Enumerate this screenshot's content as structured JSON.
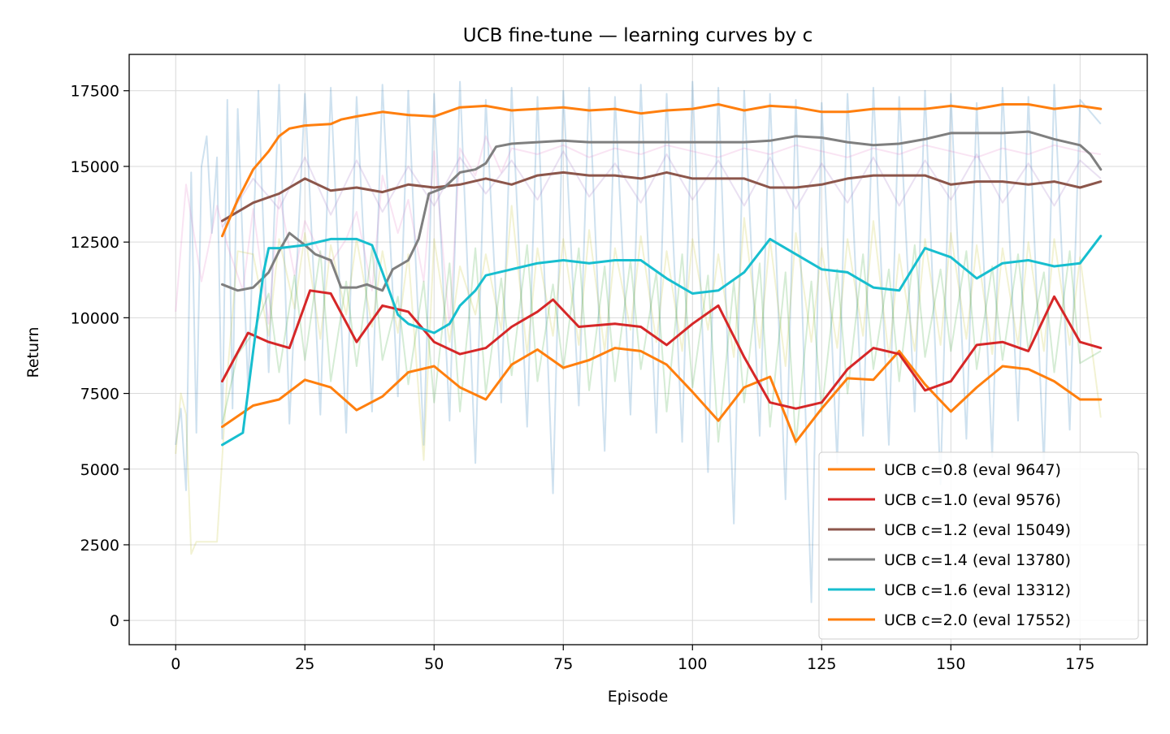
{
  "chart_data": {
    "type": "line",
    "title": "UCB fine-tune — learning curves by c",
    "xlabel": "Episode",
    "ylabel": "Return",
    "xlim": [
      -9,
      188
    ],
    "ylim": [
      -800,
      18700
    ],
    "xticks": [
      0,
      25,
      50,
      75,
      100,
      125,
      150,
      175
    ],
    "xtick_labels": [
      "0",
      "25",
      "50",
      "75",
      "100",
      "125",
      "150",
      "175"
    ],
    "yticks": [
      0,
      2500,
      5000,
      7500,
      10000,
      12500,
      15000,
      17500
    ],
    "ytick_labels": [
      "0",
      "2500",
      "5000",
      "7500",
      "10000",
      "12500",
      "15000",
      "17500"
    ],
    "grid": true,
    "legend_position": "lower-right",
    "series": [
      {
        "name": "UCB c=0.8 (eval 9647)",
        "color": "#ff7f0e",
        "x": [
          9,
          15,
          20,
          25,
          30,
          35,
          40,
          45,
          50,
          55,
          60,
          65,
          70,
          75,
          80,
          85,
          90,
          95,
          100,
          105,
          110,
          115,
          120,
          125,
          130,
          135,
          140,
          145,
          150,
          155,
          160,
          165,
          170,
          175,
          179
        ],
        "y": [
          6400,
          7100,
          7300,
          7950,
          7700,
          6950,
          7400,
          8200,
          8400,
          7700,
          7300,
          8450,
          8950,
          8350,
          8600,
          9000,
          8900,
          8450,
          7550,
          6600,
          7700,
          8050,
          5900,
          7000,
          8000,
          7950,
          8900,
          7800,
          6900,
          7700,
          8400,
          8300,
          7900,
          7300,
          7300
        ]
      },
      {
        "name": "UCB c=1.0 (eval 9576)",
        "color": "#d62728",
        "x": [
          9,
          14,
          18,
          22,
          26,
          30,
          35,
          40,
          45,
          50,
          55,
          60,
          65,
          70,
          73,
          78,
          85,
          90,
          95,
          100,
          105,
          110,
          115,
          120,
          125,
          130,
          135,
          140,
          145,
          150,
          155,
          160,
          165,
          170,
          175,
          179
        ],
        "y": [
          7900,
          9500,
          9200,
          9000,
          10900,
          10800,
          9200,
          10400,
          10200,
          9200,
          8800,
          9000,
          9700,
          10200,
          10600,
          9700,
          9800,
          9700,
          9100,
          9800,
          10400,
          8700,
          7200,
          7000,
          7200,
          8300,
          9000,
          8800,
          7600,
          7900,
          9100,
          9200,
          8900,
          10700,
          9200,
          9000
        ]
      },
      {
        "name": "UCB c=1.2 (eval 15049)",
        "color": "#8c564b",
        "x": [
          9,
          15,
          20,
          25,
          30,
          35,
          40,
          45,
          50,
          55,
          60,
          65,
          70,
          75,
          80,
          85,
          90,
          95,
          100,
          105,
          110,
          115,
          120,
          125,
          130,
          135,
          140,
          145,
          150,
          155,
          160,
          165,
          170,
          175,
          179
        ],
        "y": [
          13200,
          13800,
          14100,
          14600,
          14200,
          14300,
          14150,
          14400,
          14300,
          14400,
          14600,
          14400,
          14700,
          14800,
          14700,
          14700,
          14600,
          14800,
          14600,
          14600,
          14600,
          14300,
          14300,
          14400,
          14600,
          14700,
          14700,
          14700,
          14400,
          14500,
          14500,
          14400,
          14500,
          14300,
          14500
        ]
      },
      {
        "name": "UCB c=1.4 (eval 13780)",
        "color": "#7f7f7f",
        "x": [
          9,
          12,
          15,
          18,
          20,
          22,
          25,
          27,
          30,
          32,
          35,
          37,
          40,
          42,
          45,
          47,
          49,
          52,
          55,
          58,
          60,
          62,
          65,
          70,
          75,
          80,
          90,
          100,
          110,
          115,
          120,
          125,
          130,
          135,
          140,
          145,
          150,
          155,
          160,
          165,
          170,
          175,
          177,
          179
        ],
        "y": [
          11100,
          10900,
          11000,
          11500,
          12200,
          12800,
          12400,
          12100,
          11900,
          11000,
          11000,
          11100,
          10900,
          11600,
          11900,
          12600,
          14100,
          14300,
          14800,
          14900,
          15100,
          15650,
          15750,
          15800,
          15850,
          15800,
          15800,
          15800,
          15800,
          15850,
          16000,
          15950,
          15800,
          15700,
          15750,
          15900,
          16100,
          16100,
          16100,
          16150,
          15900,
          15700,
          15400,
          14900
        ]
      },
      {
        "name": "UCB c=1.6 (eval 13312)",
        "color": "#17becf",
        "x": [
          9,
          13,
          15,
          17,
          18,
          20,
          25,
          30,
          35,
          38,
          40,
          43,
          45,
          50,
          53,
          55,
          58,
          60,
          65,
          70,
          75,
          80,
          85,
          90,
          95,
          100,
          105,
          110,
          115,
          120,
          125,
          130,
          135,
          140,
          145,
          150,
          155,
          160,
          165,
          170,
          175,
          179
        ],
        "y": [
          5800,
          6200,
          8900,
          11500,
          12300,
          12300,
          12400,
          12600,
          12600,
          12400,
          11500,
          10100,
          9800,
          9500,
          9800,
          10400,
          10900,
          11400,
          11600,
          11800,
          11900,
          11800,
          11900,
          11900,
          11300,
          10800,
          10900,
          11500,
          12600,
          12100,
          11600,
          11500,
          11000,
          10900,
          12300,
          12000,
          11300,
          11800,
          11900,
          11700,
          11800,
          12700
        ]
      },
      {
        "name": "UCB c=2.0 (eval 17552)",
        "color": "#ff7f0e",
        "x": [
          9,
          12,
          15,
          18,
          20,
          22,
          25,
          30,
          32,
          35,
          40,
          45,
          50,
          55,
          60,
          65,
          70,
          75,
          80,
          85,
          90,
          95,
          100,
          105,
          110,
          115,
          120,
          125,
          130,
          135,
          140,
          145,
          150,
          155,
          160,
          165,
          170,
          175,
          179
        ],
        "y": [
          12700,
          13900,
          14900,
          15500,
          16000,
          16250,
          16350,
          16400,
          16550,
          16650,
          16800,
          16700,
          16650,
          16950,
          17000,
          16850,
          16900,
          16950,
          16850,
          16900,
          16750,
          16850,
          16900,
          17050,
          16850,
          17000,
          16950,
          16800,
          16800,
          16900,
          16900,
          16900,
          17000,
          16900,
          17050,
          17050,
          16900,
          17000,
          16900
        ]
      }
    ],
    "raw_background_series": [
      {
        "color": "#1f77b4",
        "opacity": 0.22,
        "x": [
          0,
          1,
          2,
          3,
          4,
          5,
          6,
          7,
          8,
          9,
          10,
          11,
          12,
          14,
          16,
          18,
          20,
          22,
          25,
          28,
          30,
          33,
          35,
          38,
          40,
          43,
          45,
          48,
          50,
          53,
          55,
          58,
          60,
          63,
          65,
          68,
          70,
          73,
          75,
          78,
          80,
          83,
          85,
          88,
          90,
          93,
          95,
          98,
          100,
          103,
          105,
          108,
          110,
          113,
          115,
          118,
          120,
          123,
          125,
          128,
          130,
          133,
          135,
          138,
          140,
          143,
          145,
          148,
          150,
          153,
          155,
          158,
          160,
          163,
          165,
          168,
          170,
          173,
          175,
          179
        ],
        "y": [
          5800,
          7000,
          4300,
          14800,
          6200,
          15000,
          16000,
          12800,
          15300,
          6000,
          17200,
          7000,
          16900,
          7600,
          17500,
          8200,
          17700,
          6500,
          17400,
          6800,
          17600,
          6200,
          17300,
          6900,
          17700,
          7400,
          17500,
          5800,
          17400,
          6600,
          17800,
          5200,
          17200,
          7200,
          17600,
          6400,
          17300,
          4200,
          17500,
          7100,
          17600,
          5600,
          17300,
          6800,
          17700,
          6200,
          17400,
          5900,
          17800,
          4900,
          17600,
          3200,
          17500,
          6100,
          17400,
          4000,
          17200,
          600,
          17100,
          5200,
          17400,
          6100,
          17600,
          5800,
          17300,
          6900,
          17500,
          4500,
          17400,
          6000,
          17100,
          5400,
          17600,
          6600,
          17300,
          5100,
          17700,
          6300,
          17200,
          16400
        ]
      },
      {
        "color": "#e377c2",
        "opacity": 0.2,
        "x": [
          0,
          2,
          5,
          8,
          10,
          13,
          15,
          18,
          20,
          23,
          25,
          28,
          30,
          33,
          35,
          38,
          40,
          43,
          45,
          48,
          50,
          53,
          55,
          58,
          60,
          63,
          65,
          70,
          75,
          80,
          85,
          90,
          95,
          100,
          105,
          110,
          115,
          120,
          125,
          130,
          135,
          140,
          145,
          150,
          155,
          160,
          165,
          170,
          175,
          179
        ],
        "y": [
          10200,
          14400,
          11200,
          13700,
          12400,
          10900,
          13600,
          9800,
          14100,
          11400,
          13200,
          12100,
          11800,
          12600,
          13500,
          10900,
          14700,
          12800,
          13900,
          11200,
          15500,
          9700,
          15600,
          14700,
          16000,
          14800,
          15600,
          15400,
          15700,
          15300,
          15600,
          15400,
          15700,
          15500,
          15300,
          15600,
          15400,
          15700,
          15500,
          15300,
          15600,
          15400,
          15700,
          15500,
          15300,
          15600,
          15400,
          15700,
          15500,
          15400
        ]
      },
      {
        "color": "#9467bd",
        "opacity": 0.2,
        "x": [
          9,
          15,
          20,
          25,
          30,
          35,
          40,
          45,
          50,
          55,
          60,
          65,
          70,
          75,
          80,
          85,
          90,
          95,
          100,
          105,
          110,
          115,
          120,
          125,
          130,
          135,
          140,
          145,
          150,
          155,
          160,
          165,
          170,
          175,
          179
        ],
        "y": [
          13000,
          14600,
          13600,
          15300,
          13400,
          15200,
          13500,
          15000,
          13700,
          15300,
          14100,
          15200,
          13900,
          15500,
          14000,
          15100,
          13800,
          15400,
          13900,
          15200,
          13700,
          15300,
          13600,
          15100,
          13800,
          15300,
          13700,
          15200,
          13900,
          15400,
          13800,
          15100,
          13700,
          15200,
          14600
        ]
      },
      {
        "color": "#bcbd22",
        "opacity": 0.2,
        "x": [
          0,
          1,
          2,
          3,
          4,
          5,
          6,
          7,
          8,
          10,
          12,
          15,
          18,
          20,
          23,
          25,
          28,
          30,
          33,
          35,
          38,
          40,
          43,
          45,
          48,
          50,
          53,
          55,
          58,
          60,
          63,
          65,
          68,
          70,
          73,
          75,
          78,
          80,
          83,
          85,
          88,
          90,
          93,
          95,
          98,
          100,
          103,
          105,
          108,
          110,
          113,
          115,
          118,
          120,
          123,
          125,
          128,
          130,
          133,
          135,
          138,
          140,
          143,
          145,
          148,
          150,
          153,
          155,
          158,
          160,
          163,
          165,
          168,
          170,
          173,
          175,
          179
        ],
        "y": [
          5500,
          7500,
          6800,
          2200,
          2600,
          2600,
          2600,
          2600,
          2600,
          8100,
          12200,
          12100,
          9400,
          12600,
          10300,
          12800,
          9300,
          12400,
          10100,
          12600,
          9700,
          12200,
          9500,
          12100,
          5300,
          12600,
          9200,
          11700,
          10100,
          12100,
          9600,
          13700,
          8800,
          12300,
          9400,
          12600,
          9100,
          12900,
          8900,
          12300,
          9600,
          12700,
          9200,
          12200,
          8900,
          12600,
          9600,
          12100,
          8700,
          13300,
          9000,
          12600,
          8400,
          12800,
          9200,
          12300,
          9000,
          12600,
          9400,
          13200,
          8700,
          12100,
          8900,
          12600,
          9100,
          12800,
          9300,
          12400,
          8800,
          12300,
          9100,
          12500,
          8900,
          12600,
          9100,
          12000,
          6700
        ]
      },
      {
        "color": "#2ca02c",
        "opacity": 0.2,
        "x": [
          9,
          12,
          15,
          18,
          20,
          23,
          25,
          28,
          30,
          33,
          35,
          38,
          40,
          43,
          45,
          48,
          50,
          53,
          55,
          58,
          60,
          63,
          65,
          68,
          70,
          73,
          75,
          78,
          80,
          83,
          85,
          88,
          90,
          93,
          95,
          98,
          100,
          103,
          105,
          108,
          110,
          113,
          115,
          118,
          120,
          123,
          125,
          128,
          130,
          133,
          135,
          138,
          140,
          143,
          145,
          148,
          150,
          153,
          155,
          158,
          160,
          163,
          165,
          168,
          170,
          173,
          175,
          179
        ],
        "y": [
          6500,
          8800,
          9500,
          10800,
          8200,
          11400,
          8600,
          12200,
          7900,
          11200,
          8400,
          12300,
          8600,
          10700,
          7800,
          11200,
          7200,
          11800,
          6900,
          12300,
          7500,
          11300,
          8100,
          12400,
          7900,
          11100,
          8300,
          12300,
          7600,
          11700,
          7900,
          11900,
          8300,
          11500,
          6900,
          12100,
          7700,
          11400,
          5900,
          11200,
          7200,
          11800,
          6400,
          11500,
          5800,
          11200,
          6900,
          11600,
          7500,
          12100,
          8300,
          11600,
          7900,
          12400,
          8700,
          11600,
          8900,
          12200,
          8300,
          11700,
          8600,
          12100,
          8900,
          11500,
          8200,
          12200,
          8500,
          8900
        ]
      }
    ]
  }
}
